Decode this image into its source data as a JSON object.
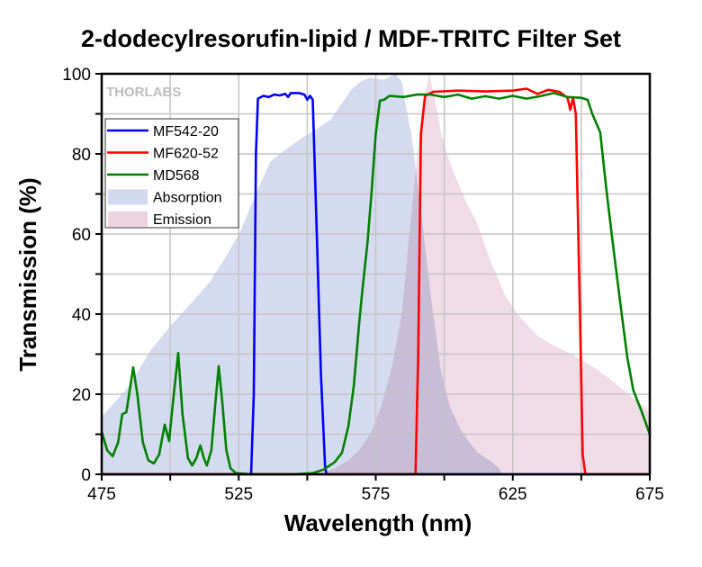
{
  "chart_data": {
    "type": "line",
    "title": "2-dodecylresorufin-lipid / MDF-TRITC Filter Set",
    "xlabel": "Wavelength (nm)",
    "ylabel": "Transmission (%)",
    "xlim": [
      475,
      675
    ],
    "ylim": [
      0,
      100
    ],
    "xticks": [
      475,
      525,
      575,
      625,
      675
    ],
    "yticks": [
      0,
      20,
      40,
      60,
      80,
      100
    ],
    "grid": true,
    "legend_position": "top-left",
    "watermark": "THORLABS",
    "series": [
      {
        "name": "MF542-20",
        "kind": "line",
        "color": "#0000ff",
        "points": [
          [
            475,
            0
          ],
          [
            529.5,
            0
          ],
          [
            530.5,
            20
          ],
          [
            531.3,
            80
          ],
          [
            532,
            93.8
          ],
          [
            534,
            94.5
          ],
          [
            536,
            94.2
          ],
          [
            538,
            94.8
          ],
          [
            540,
            94.6
          ],
          [
            542,
            95
          ],
          [
            543,
            94.2
          ],
          [
            544,
            95.2
          ],
          [
            547,
            95.2
          ],
          [
            549,
            94.8
          ],
          [
            550,
            93.5
          ],
          [
            551,
            94.5
          ],
          [
            552,
            93.5
          ],
          [
            553.5,
            60
          ],
          [
            555,
            25
          ],
          [
            556.5,
            2
          ],
          [
            557,
            0
          ],
          [
            675,
            0
          ]
        ]
      },
      {
        "name": "MF620-52",
        "kind": "line",
        "color": "#ff0000",
        "points": [
          [
            475,
            0
          ],
          [
            589.5,
            0
          ],
          [
            590.5,
            30
          ],
          [
            591.5,
            85
          ],
          [
            593,
            94.5
          ],
          [
            596,
            95.5
          ],
          [
            605,
            95.8
          ],
          [
            615,
            95.6
          ],
          [
            625,
            95.8
          ],
          [
            630,
            96.3
          ],
          [
            634,
            95
          ],
          [
            638,
            96
          ],
          [
            642,
            95.5
          ],
          [
            645,
            94
          ],
          [
            646,
            91
          ],
          [
            647,
            94
          ],
          [
            648,
            90
          ],
          [
            649.5,
            40
          ],
          [
            650.5,
            5
          ],
          [
            651.5,
            0
          ],
          [
            675,
            0
          ]
        ]
      },
      {
        "name": "MD568",
        "kind": "line",
        "color": "#008000",
        "points": [
          [
            475,
            10.6
          ],
          [
            477,
            6
          ],
          [
            479,
            4.5
          ],
          [
            481,
            8
          ],
          [
            482.5,
            15
          ],
          [
            484,
            15.5
          ],
          [
            486.5,
            26.7
          ],
          [
            488,
            20
          ],
          [
            490,
            8
          ],
          [
            492,
            3.5
          ],
          [
            494,
            2.7
          ],
          [
            496,
            5
          ],
          [
            498,
            12.4
          ],
          [
            499.6,
            8.3
          ],
          [
            501,
            18
          ],
          [
            502.9,
            30.3
          ],
          [
            504.5,
            15
          ],
          [
            506.5,
            4
          ],
          [
            508,
            2.2
          ],
          [
            509.5,
            4
          ],
          [
            511,
            7.2
          ],
          [
            512.3,
            4
          ],
          [
            513.4,
            2.2
          ],
          [
            515,
            6
          ],
          [
            516.5,
            18
          ],
          [
            517.7,
            27
          ],
          [
            519,
            18
          ],
          [
            520.5,
            6
          ],
          [
            522,
            1.5
          ],
          [
            524,
            0.3
          ],
          [
            530,
            0
          ],
          [
            545,
            0
          ],
          [
            552,
            0.3
          ],
          [
            556,
            1.2
          ],
          [
            560,
            3
          ],
          [
            562.7,
            5.4
          ],
          [
            565,
            12
          ],
          [
            567,
            22
          ],
          [
            569,
            38
          ],
          [
            570.2,
            46.5
          ],
          [
            572,
            58
          ],
          [
            573.5,
            70.6
          ],
          [
            575,
            85
          ],
          [
            576.5,
            93.3
          ],
          [
            578,
            93.5
          ],
          [
            580,
            94.5
          ],
          [
            585,
            94.2
          ],
          [
            590,
            94.8
          ],
          [
            595,
            94.8
          ],
          [
            600,
            94.2
          ],
          [
            605,
            94.8
          ],
          [
            610,
            93.8
          ],
          [
            615,
            94.4
          ],
          [
            620,
            93.8
          ],
          [
            625,
            94.5
          ],
          [
            630,
            93.8
          ],
          [
            635,
            94.4
          ],
          [
            640,
            95.2
          ],
          [
            645,
            94.2
          ],
          [
            650,
            94
          ],
          [
            652.3,
            93.5
          ],
          [
            654,
            90
          ],
          [
            656.9,
            85.4
          ],
          [
            659,
            72
          ],
          [
            661.2,
            59.3
          ],
          [
            664,
            44
          ],
          [
            666.8,
            29.2
          ],
          [
            669,
            21
          ],
          [
            672,
            15.7
          ],
          [
            675,
            10
          ]
        ]
      },
      {
        "name": "Absorption",
        "kind": "area",
        "color": "#d2d9ee",
        "points": [
          [
            475,
            14.4
          ],
          [
            485,
            22
          ],
          [
            492.7,
            30.8
          ],
          [
            500,
            37
          ],
          [
            508,
            43
          ],
          [
            514.4,
            48
          ],
          [
            520,
            54
          ],
          [
            525.6,
            60.7
          ],
          [
            530,
            68
          ],
          [
            536.4,
            78
          ],
          [
            542,
            81
          ],
          [
            548,
            84
          ],
          [
            553,
            86
          ],
          [
            558.4,
            88.5
          ],
          [
            562,
            92
          ],
          [
            566,
            96
          ],
          [
            569.3,
            98
          ],
          [
            573,
            99
          ],
          [
            578,
            98.5
          ],
          [
            582,
            100
          ],
          [
            584.6,
            98
          ],
          [
            586,
            92
          ],
          [
            588,
            85
          ],
          [
            590,
            74
          ],
          [
            592,
            63
          ],
          [
            595,
            45
          ],
          [
            598.8,
            25.6
          ],
          [
            602,
            17
          ],
          [
            606.4,
            10.6
          ],
          [
            612,
            5.5
          ],
          [
            617.5,
            3
          ],
          [
            620,
            1.5
          ],
          [
            621,
            0
          ],
          [
            675,
            0
          ]
        ]
      },
      {
        "name": "Emission",
        "kind": "area",
        "color": "#ecd3e0",
        "points": [
          [
            475,
            0
          ],
          [
            555,
            0
          ],
          [
            560.4,
            1.6
          ],
          [
            565,
            3.5
          ],
          [
            569,
            6
          ],
          [
            573.5,
            10.6
          ],
          [
            577,
            17
          ],
          [
            581,
            27
          ],
          [
            584.6,
            40.5
          ],
          [
            587,
            58
          ],
          [
            589.9,
            78
          ],
          [
            592,
            92
          ],
          [
            594.5,
            100
          ],
          [
            596.5,
            94
          ],
          [
            598.8,
            85.4
          ],
          [
            601,
            80
          ],
          [
            604.3,
            74
          ],
          [
            608,
            68
          ],
          [
            611.8,
            63
          ],
          [
            617,
            53
          ],
          [
            622.7,
            44
          ],
          [
            628,
            39
          ],
          [
            633.9,
            34.6
          ],
          [
            639.2,
            32.4
          ],
          [
            645,
            30.5
          ],
          [
            650.3,
            28.5
          ],
          [
            655,
            26.5
          ],
          [
            661.2,
            23.4
          ],
          [
            668,
            19.5
          ],
          [
            675,
            15.7
          ]
        ]
      }
    ]
  }
}
